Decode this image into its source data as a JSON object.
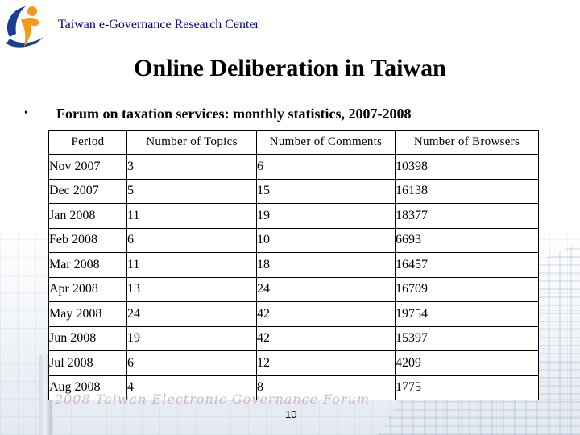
{
  "header": {
    "org_name": "Taiwan e-Governance Research Center"
  },
  "slide": {
    "title": "Online Deliberation in Taiwan",
    "bullet_marker": "•",
    "bullet_text": "Forum on taxation services: monthly statistics, 2007-2008",
    "watermark": "2008 Taiwan Electronic Governance Forum",
    "page_number": "10"
  },
  "table": {
    "headers": {
      "period": "Period",
      "topics": "Number of Topics",
      "comments": "Number of Comments",
      "browsers": "Number of Browsers"
    },
    "rows": [
      {
        "period": "Nov 2007",
        "topics": "3",
        "comments": "6",
        "browsers": "10398"
      },
      {
        "period": "Dec 2007",
        "topics": "5",
        "comments": "15",
        "browsers": "16138"
      },
      {
        "period": "Jan 2008",
        "topics": "11",
        "comments": "19",
        "browsers": "18377"
      },
      {
        "period": "Feb 2008",
        "topics": "6",
        "comments": "10",
        "browsers": "6693"
      },
      {
        "period": "Mar 2008",
        "topics": "11",
        "comments": "18",
        "browsers": "16457"
      },
      {
        "period": "Apr 2008",
        "topics": "13",
        "comments": "24",
        "browsers": "16709"
      },
      {
        "period": "May 2008",
        "topics": "24",
        "comments": "42",
        "browsers": "19754"
      },
      {
        "period": "Jun 2008",
        "topics": "19",
        "comments": "42",
        "browsers": "15397"
      },
      {
        "period": "Jul 2008",
        "topics": "6",
        "comments": "12",
        "browsers": "4209"
      },
      {
        "period": "Aug 2008",
        "topics": "4",
        "comments": "8",
        "browsers": "1775"
      }
    ]
  },
  "colors": {
    "org_name": "#000080",
    "logo_blue": "#1a3f8f",
    "logo_orange": "#f39a1e"
  },
  "icons": {
    "logo": "teg-logo-icon"
  }
}
